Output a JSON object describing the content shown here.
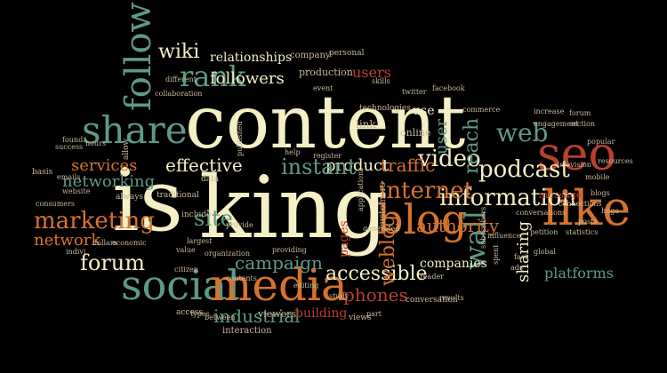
{
  "word_cloud": {
    "background": "#000000",
    "colors": {
      "cream": "#f4efc4",
      "teal": "#5e9a86",
      "orange": "#d5732d",
      "red": "#b8402f",
      "small": "#c9b89c"
    },
    "words": [
      {
        "text": "content",
        "color": "cream"
      },
      {
        "text": "is",
        "color": "cream"
      },
      {
        "text": "king",
        "color": "cream"
      },
      {
        "text": "social",
        "color": "teal"
      },
      {
        "text": "media",
        "color": "orange"
      },
      {
        "text": "share",
        "color": "teal"
      },
      {
        "text": "follow",
        "color": "teal"
      },
      {
        "text": "rank",
        "color": "teal"
      },
      {
        "text": "wiki",
        "color": "cream"
      },
      {
        "text": "followers",
        "color": "cream"
      },
      {
        "text": "relationships",
        "color": "cream"
      },
      {
        "text": "company",
        "color": "small"
      },
      {
        "text": "personal",
        "color": "small"
      },
      {
        "text": "production",
        "color": "small"
      },
      {
        "text": "users",
        "color": "red"
      },
      {
        "text": "seo",
        "color": "red"
      },
      {
        "text": "like",
        "color": "orange"
      },
      {
        "text": "web",
        "color": "teal"
      },
      {
        "text": "podcast",
        "color": "cream"
      },
      {
        "text": "information",
        "color": "cream"
      },
      {
        "text": "internet",
        "color": "orange"
      },
      {
        "text": "blog",
        "color": "orange"
      },
      {
        "text": "video",
        "color": "cream"
      },
      {
        "text": "traffic",
        "color": "orange"
      },
      {
        "text": "product",
        "color": "cream"
      },
      {
        "text": "instant",
        "color": "teal"
      },
      {
        "text": "effective",
        "color": "cream"
      },
      {
        "text": "services",
        "color": "orange"
      },
      {
        "text": "networking",
        "color": "teal"
      },
      {
        "text": "marketing",
        "color": "orange"
      },
      {
        "text": "network",
        "color": "orange"
      },
      {
        "text": "forum",
        "color": "cream"
      },
      {
        "text": "campaign",
        "color": "teal"
      },
      {
        "text": "site",
        "color": "teal"
      },
      {
        "text": "accessible",
        "color": "cream"
      },
      {
        "text": "weblog",
        "color": "orange"
      },
      {
        "text": "wall",
        "color": "teal"
      },
      {
        "text": "authority",
        "color": "orange"
      },
      {
        "text": "reach",
        "color": "teal"
      },
      {
        "text": "user",
        "color": "teal"
      },
      {
        "text": "link",
        "color": "small"
      },
      {
        "text": "online",
        "color": "small"
      },
      {
        "text": "use",
        "color": "cream"
      },
      {
        "text": "sharing",
        "color": "cream"
      },
      {
        "text": "platforms",
        "color": "teal"
      },
      {
        "text": "companies",
        "color": "cream"
      },
      {
        "text": "phones",
        "color": "red"
      },
      {
        "text": "industrial",
        "color": "teal"
      },
      {
        "text": "building",
        "color": "red"
      },
      {
        "text": "viewers",
        "color": "small"
      },
      {
        "text": "interaction",
        "color": "small"
      },
      {
        "text": "technologies",
        "color": "small"
      },
      {
        "text": "television",
        "color": "small"
      },
      {
        "text": "message",
        "color": "red"
      },
      {
        "text": "statistics",
        "color": "small"
      },
      {
        "text": "huge",
        "color": "small"
      },
      {
        "text": "different",
        "color": "small"
      },
      {
        "text": "traditional",
        "color": "small"
      },
      {
        "text": "always",
        "color": "small"
      },
      {
        "text": "include",
        "color": "small"
      },
      {
        "text": "data",
        "color": "small"
      },
      {
        "text": "largest",
        "color": "small"
      },
      {
        "text": "value",
        "color": "small"
      },
      {
        "text": "types",
        "color": "small"
      },
      {
        "text": "between",
        "color": "small"
      },
      {
        "text": "access",
        "color": "small"
      },
      {
        "text": "conversation",
        "color": "small"
      },
      {
        "text": "providing",
        "color": "small"
      },
      {
        "text": "pages",
        "color": "red"
      },
      {
        "text": "study",
        "color": "small"
      },
      {
        "text": "views",
        "color": "small"
      },
      {
        "text": "part",
        "color": "small"
      },
      {
        "text": "editing",
        "color": "small"
      },
      {
        "text": "customers",
        "color": "small"
      },
      {
        "text": "increase",
        "color": "small"
      },
      {
        "text": "engagement",
        "color": "small"
      },
      {
        "text": "connections",
        "color": "small"
      },
      {
        "text": "petition",
        "color": "small"
      },
      {
        "text": "influence",
        "color": "small"
      },
      {
        "text": "subscribers",
        "color": "small"
      },
      {
        "text": "global",
        "color": "small"
      },
      {
        "text": "conversations",
        "color": "small"
      },
      {
        "text": "published",
        "color": "small"
      },
      {
        "text": "economic",
        "color": "small"
      },
      {
        "text": "event",
        "color": "small"
      },
      {
        "text": "collaboration",
        "color": "small"
      },
      {
        "text": "dollars",
        "color": "small"
      },
      {
        "text": "citizen",
        "color": "small"
      },
      {
        "text": "organization",
        "color": "small"
      },
      {
        "text": "contents",
        "color": "small"
      },
      {
        "text": "provide",
        "color": "small"
      },
      {
        "text": "help",
        "color": "small"
      },
      {
        "text": "register",
        "color": "small"
      },
      {
        "text": "allow",
        "color": "small"
      },
      {
        "text": "success",
        "color": "small"
      },
      {
        "text": "found",
        "color": "small"
      },
      {
        "text": "hours",
        "color": "small"
      },
      {
        "text": "basis",
        "color": "small"
      },
      {
        "text": "skills",
        "color": "small"
      },
      {
        "text": "twitter",
        "color": "small"
      },
      {
        "text": "facebook",
        "color": "small"
      },
      {
        "text": "commerce",
        "color": "small"
      },
      {
        "text": "consumers",
        "color": "small"
      },
      {
        "text": "website",
        "color": "small"
      },
      {
        "text": "emails",
        "color": "small"
      },
      {
        "text": "popular",
        "color": "small"
      },
      {
        "text": "resources",
        "color": "small"
      },
      {
        "text": "mobile",
        "color": "small"
      },
      {
        "text": "blogs",
        "color": "small"
      },
      {
        "text": "posts",
        "color": "small"
      },
      {
        "text": "applications",
        "color": "small"
      },
      {
        "text": "generated",
        "color": "small"
      },
      {
        "text": "reader",
        "color": "small"
      },
      {
        "text": "results",
        "color": "small"
      },
      {
        "text": "forum",
        "color": "small"
      },
      {
        "text": "section",
        "color": "small"
      },
      {
        "text": "ads",
        "color": "small"
      },
      {
        "text": "fact",
        "color": "small"
      },
      {
        "text": "spent",
        "color": "small"
      },
      {
        "text": "indivi",
        "color": "small"
      }
    ]
  }
}
